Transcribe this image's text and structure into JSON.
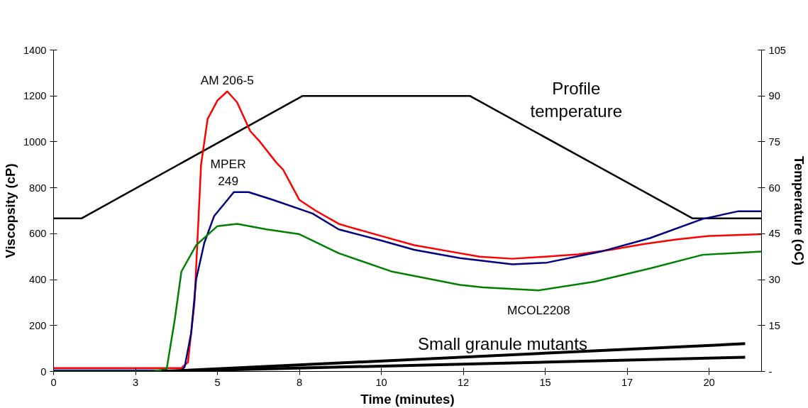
{
  "chart_data": {
    "type": "line",
    "xlabel": "Time (minutes)",
    "ylabel": "Viscopsity (cP)",
    "y2label": "Temperature (oC)",
    "xlim": [
      0,
      21.6
    ],
    "xticks": [
      0,
      {
        "value": 2.5,
        "label": "3"
      },
      5,
      {
        "value": 7.5,
        "label": "8"
      },
      10,
      {
        "value": 12.5,
        "label": "12"
      },
      15,
      {
        "value": 17.5,
        "label": "17"
      },
      20
    ],
    "ylim": [
      0,
      1400
    ],
    "yticks": [
      0,
      200,
      400,
      600,
      800,
      1000,
      1200,
      1400
    ],
    "y2lim": [
      0,
      105
    ],
    "y2ticks": [
      {
        "value": 0,
        "label": "-"
      },
      15,
      30,
      45,
      60,
      75,
      90,
      105
    ],
    "grid": false,
    "marker": "none",
    "line_style": "solid",
    "series": [
      {
        "name": "Profile temperature",
        "color": "#000000",
        "axis": "y2",
        "x": [
          0,
          0.85,
          7.6,
          12.7,
          19.5,
          21.6
        ],
        "values": [
          50,
          50,
          90,
          90,
          50,
          50
        ]
      },
      {
        "name": "AM 206-5",
        "color": "#ff0000",
        "x": [
          0,
          1,
          2,
          3,
          3.9,
          4.1,
          4.3,
          4.5,
          4.7,
          5.0,
          5.3,
          5.6,
          6.0,
          6.3,
          6.8,
          7.0,
          7.5,
          8.0,
          8.7,
          9,
          10,
          11,
          12.4,
          13,
          14,
          15,
          16,
          17,
          18,
          19,
          20,
          21,
          21.6
        ],
        "values": [
          15,
          15,
          15,
          15,
          15,
          40,
          300,
          900,
          1100,
          1180,
          1220,
          1172,
          1047,
          1000,
          909,
          880,
          747,
          700,
          643,
          630,
          590,
          550,
          515,
          500,
          491,
          500,
          510,
          530,
          555,
          575,
          590,
          595,
          598
        ]
      },
      {
        "name": "MPER 249",
        "color": "#000080",
        "x": [
          0,
          1,
          2,
          3,
          3.9,
          4.0,
          4.2,
          4.35,
          4.6,
          4.9,
          5.5,
          5.95,
          6.7,
          7.9,
          8.7,
          10,
          11,
          12.4,
          14,
          15.05,
          16.7,
          18.2,
          19.8,
          20.9,
          21.6
        ],
        "values": [
          5,
          5,
          5,
          5,
          5,
          20,
          169,
          401,
          560,
          677,
          781,
          781,
          747,
          688,
          619,
          570,
          530,
          494,
          467,
          474,
          522,
          581,
          664,
          698,
          698
        ]
      },
      {
        "name": "MCOL2208",
        "color": "#008000",
        "x": [
          0,
          1,
          2,
          3,
          3.45,
          3.7,
          3.9,
          4.35,
          5.0,
          5.6,
          6.5,
          7.5,
          8.7,
          10.3,
          12.4,
          13.1,
          14.8,
          16.5,
          18.2,
          19.8,
          21.6
        ],
        "values": [
          0,
          0,
          0,
          0,
          10,
          228,
          435,
          550,
          633,
          643,
          619,
          598,
          515,
          436,
          377,
          366,
          353,
          391,
          449,
          508,
          522
        ]
      },
      {
        "color": "#000000",
        "x": [
          3.3,
          21.1
        ],
        "values": [
          0,
          121
        ]
      },
      {
        "color": "#000000",
        "x": [
          3.3,
          21.1
        ],
        "values": [
          0,
          62
        ]
      }
    ],
    "annotations": [
      "Small granule mutants"
    ]
  }
}
